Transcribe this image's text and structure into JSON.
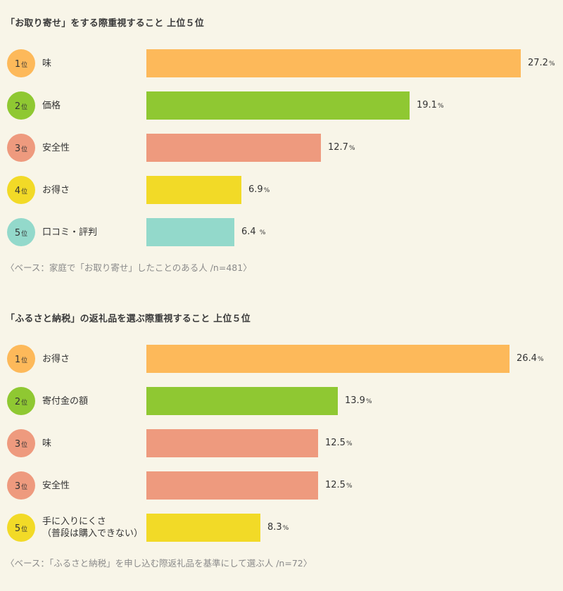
{
  "chart_data": [
    {
      "type": "bar",
      "orientation": "horizontal",
      "title": "「お取り寄せ」をする際重視すること 上位５位",
      "rank_suffix": "位",
      "percent_unit": "%",
      "ranks": [
        "1",
        "2",
        "3",
        "4",
        "5"
      ],
      "categories": [
        "味",
        "価格",
        "安全性",
        "お得さ",
        "口コミ・評判"
      ],
      "values": [
        27.2,
        19.1,
        12.7,
        6.9,
        6.4
      ],
      "value_labels": [
        "27.2",
        "19.1",
        "12.7",
        "6.9",
        "6.4 "
      ],
      "colors": [
        "#fdb95a",
        "#8fc832",
        "#ee9a7e",
        "#f2da27",
        "#93d9cb"
      ],
      "xlim": [
        0,
        27.2
      ],
      "footnote": "〈ベース：家庭で「お取り寄せ」したことのある人 /n=481〉"
    },
    {
      "type": "bar",
      "orientation": "horizontal",
      "title": "「ふるさと納税」の返礼品を選ぶ際重視すること 上位５位",
      "rank_suffix": "位",
      "percent_unit": "%",
      "ranks": [
        "1",
        "2",
        "3",
        "3",
        "5"
      ],
      "categories": [
        "お得さ",
        "寄付金の額",
        "味",
        "安全性",
        "手に入りにくさ\n（普段は購入できない）"
      ],
      "values": [
        26.4,
        13.9,
        12.5,
        12.5,
        8.3
      ],
      "value_labels": [
        "26.4",
        "13.9",
        "12.5",
        "12.5",
        "8.3"
      ],
      "colors": [
        "#fdb95a",
        "#8fc832",
        "#ee9a7e",
        "#ee9a7e",
        "#f2da27"
      ],
      "xlim": [
        0,
        27.2
      ],
      "footnote": "〈ベース：「ふるさと納税」を申し込む際返礼品を基準にして選ぶ人 /n=72〉"
    }
  ]
}
